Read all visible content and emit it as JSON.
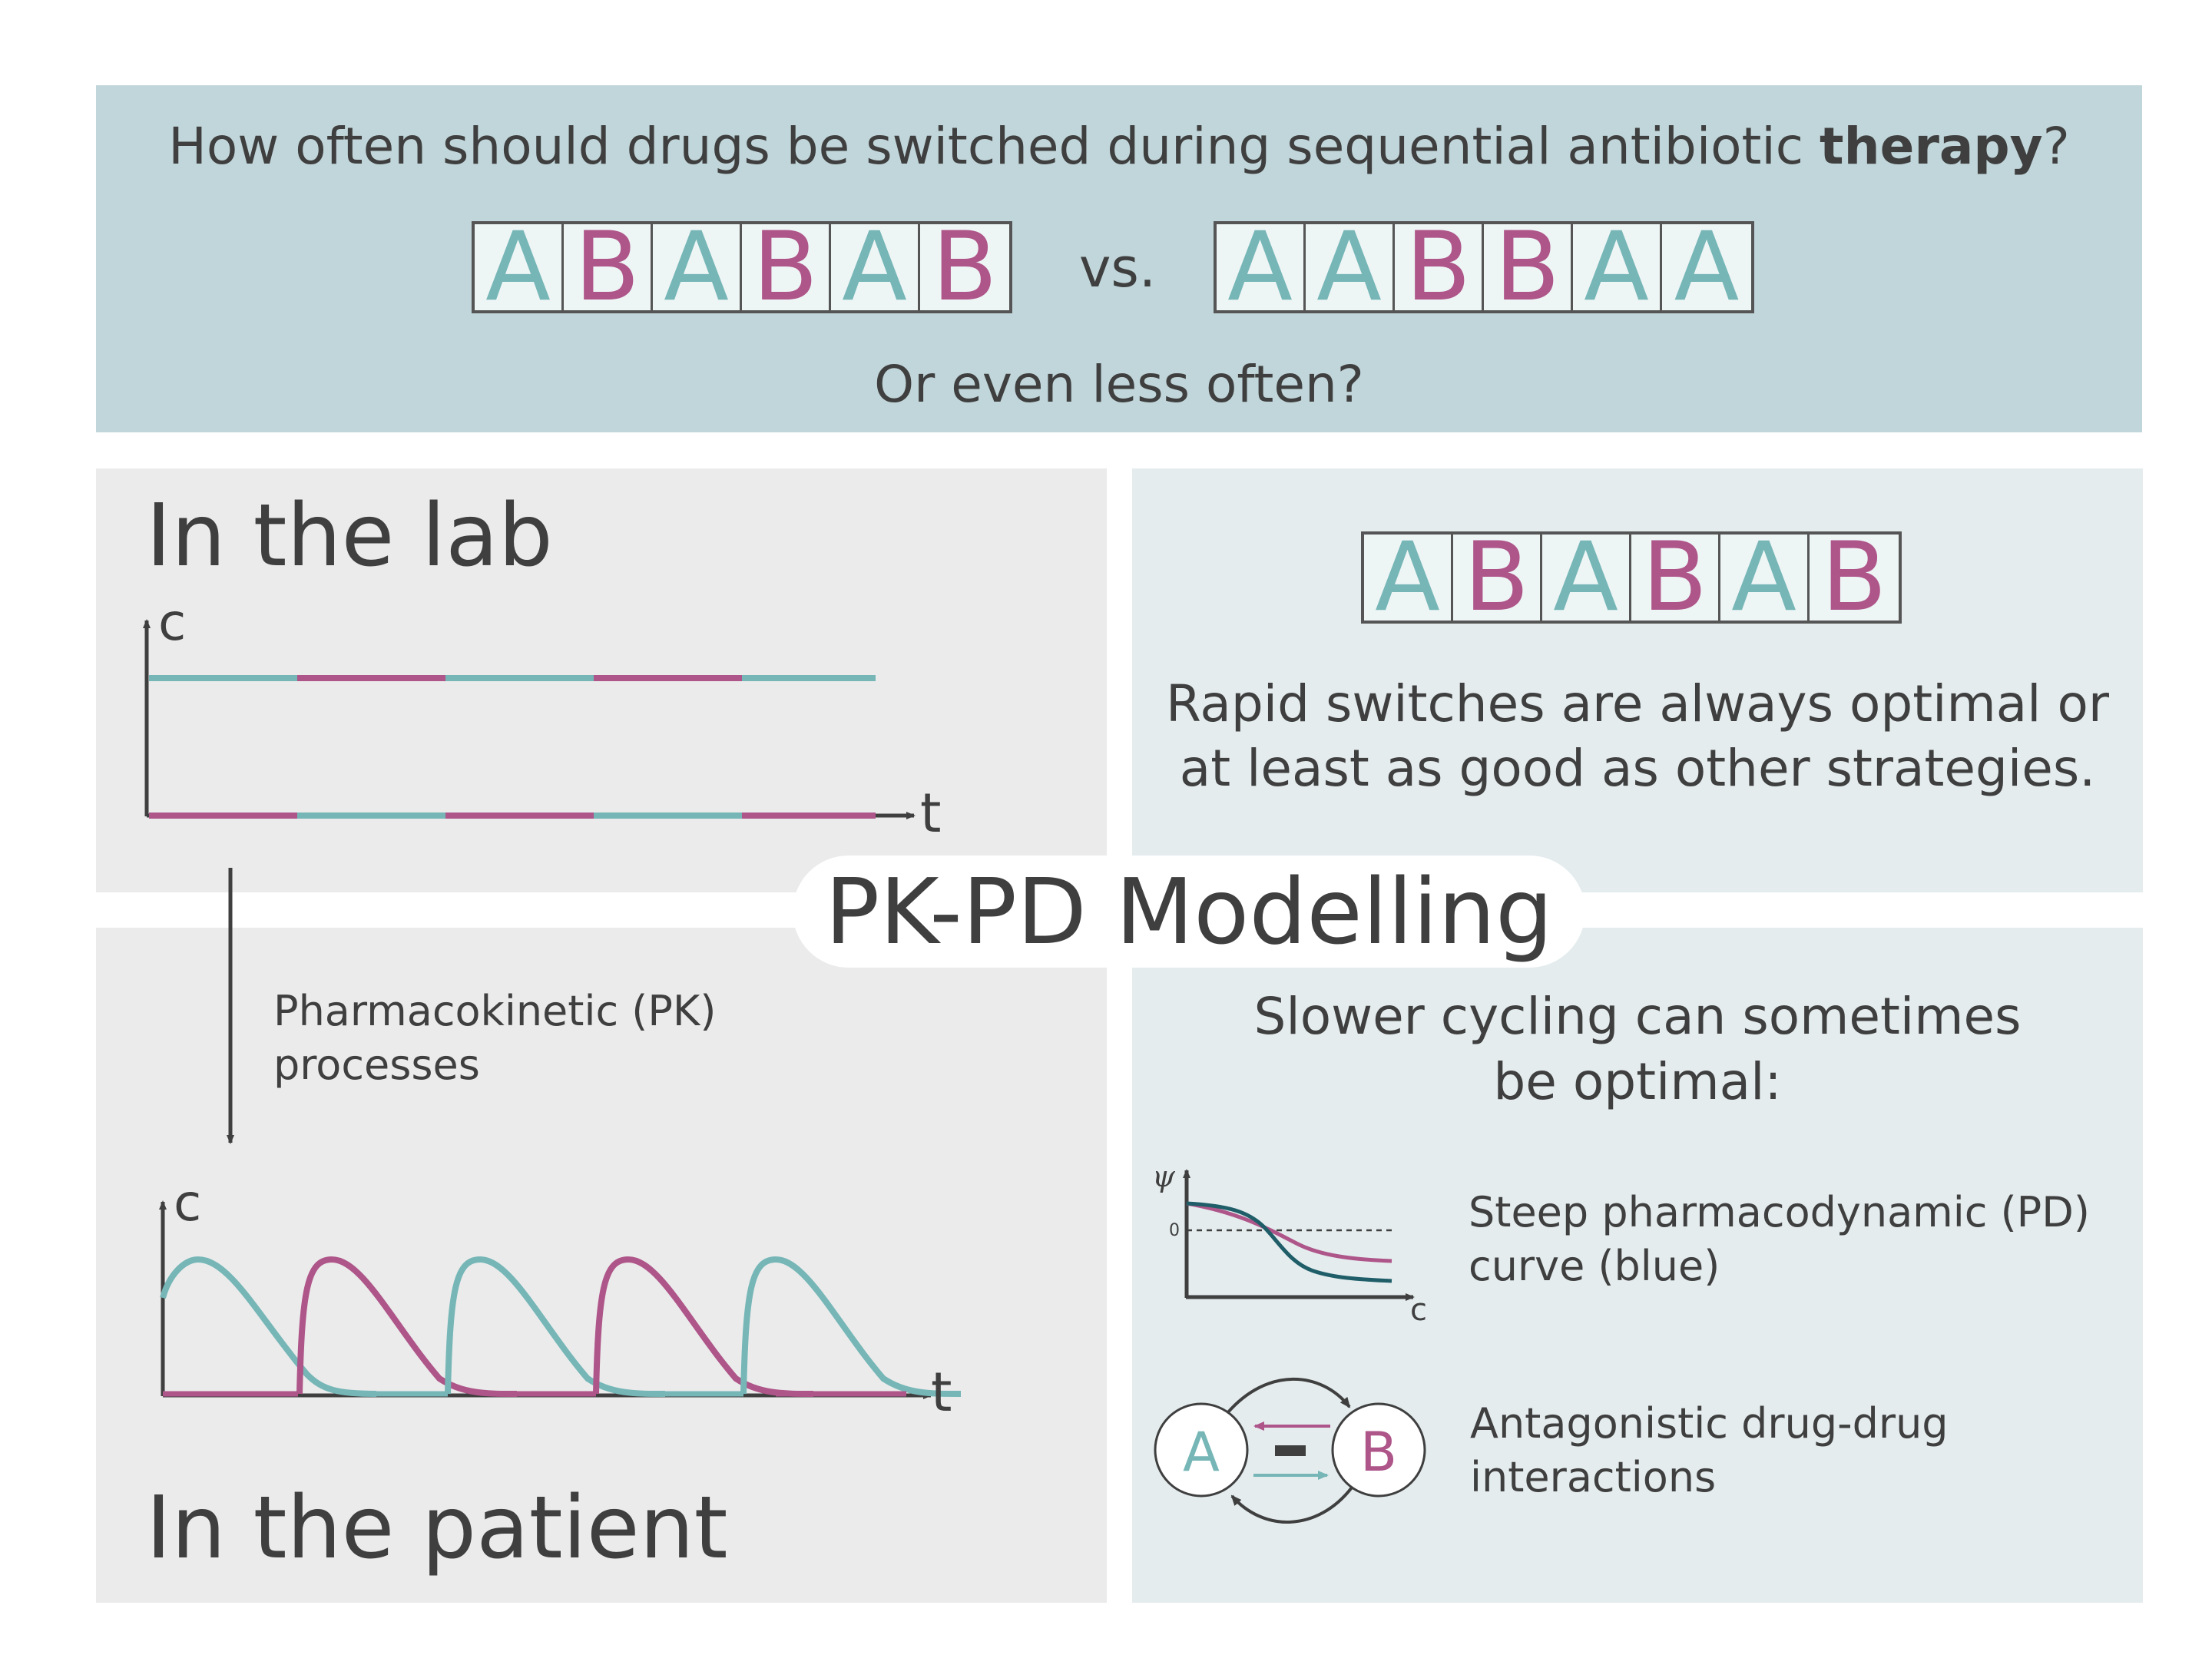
{
  "header": {
    "question_prefix": "How often should drugs be switched during sequential antibiotic ",
    "question_bold": "therapy",
    "question_suffix": "?",
    "sequence_fast": [
      "A",
      "B",
      "A",
      "B",
      "A",
      "B"
    ],
    "vs_label": "vs.",
    "sequence_slow": [
      "A",
      "A",
      "B",
      "B",
      "A",
      "A"
    ],
    "subquestion": "Or even less often?"
  },
  "lab": {
    "title": "In the lab",
    "y_axis_label": "c",
    "x_axis_label": "t"
  },
  "pk_arrow_label": {
    "line1": "Pharmacokinetic (PK)",
    "line2": "processes"
  },
  "patient": {
    "title": "In the patient",
    "y_axis_label": "c",
    "x_axis_label": "t"
  },
  "center_label": "PK-PD Modelling",
  "rapid": {
    "sequence": [
      "A",
      "B",
      "A",
      "B",
      "A",
      "B"
    ],
    "line1": "Rapid switches are always optimal or",
    "line2": "at least as good as other strategies."
  },
  "slow": {
    "line1": "Slower cycling can sometimes",
    "line2": "be optimal:",
    "pd_y_label": "ψ",
    "pd_zero_label": "0",
    "pd_x_label": "c",
    "pd_text_line1": "Steep pharmacodynamic (PD)",
    "pd_text_line2": "curve (blue)",
    "node_a": "A",
    "node_b": "B",
    "antag_text_line1": "Antagonistic drug-drug",
    "antag_text_line2": "interactions"
  },
  "colors": {
    "drug_a": "#76b6b7",
    "drug_b": "#ae5589",
    "steep_curve": "#1f5e68",
    "axis": "#3f3f3f"
  }
}
